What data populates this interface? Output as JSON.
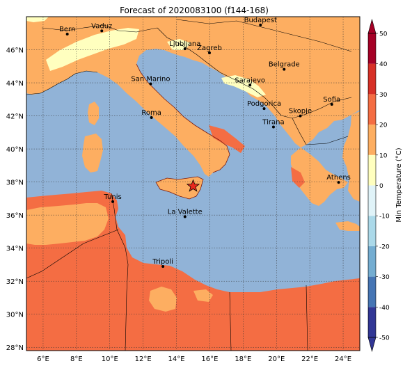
{
  "title": "Forecast of 2020083100 (f144-168)",
  "map": {
    "lon_range": [
      5,
      25
    ],
    "lat_range": [
      27.8,
      48
    ],
    "lon_ticks": [
      "6°E",
      "8°E",
      "10°E",
      "12°E",
      "14°E",
      "16°E",
      "18°E",
      "20°E",
      "22°E",
      "24°E"
    ],
    "lat_ticks": [
      "28°N",
      "30°N",
      "32°N",
      "34°N",
      "36°N",
      "38°N",
      "40°N",
      "42°N",
      "44°N",
      "46°N"
    ],
    "grid": true,
    "marker": {
      "symbol": "star",
      "lon": 15.0,
      "lat": 37.75,
      "color": "#e8291c"
    },
    "cities": [
      {
        "name": "Bern",
        "lon": 7.45,
        "lat": 46.95
      },
      {
        "name": "Vaduz",
        "lon": 9.52,
        "lat": 47.14
      },
      {
        "name": "Budapest",
        "lon": 19.04,
        "lat": 47.5
      },
      {
        "name": "Ljubljana",
        "lon": 14.51,
        "lat": 46.06
      },
      {
        "name": "Zagreb",
        "lon": 15.98,
        "lat": 45.81
      },
      {
        "name": "Belgrade",
        "lon": 20.46,
        "lat": 44.82
      },
      {
        "name": "San Marino",
        "lon": 12.45,
        "lat": 43.94
      },
      {
        "name": "Sarajevo",
        "lon": 18.41,
        "lat": 43.86
      },
      {
        "name": "Sofia",
        "lon": 23.32,
        "lat": 42.7
      },
      {
        "name": "Podgorica",
        "lon": 19.26,
        "lat": 42.44
      },
      {
        "name": "Skopje",
        "lon": 21.43,
        "lat": 42.0
      },
      {
        "name": "Roma",
        "lon": 12.5,
        "lat": 41.9
      },
      {
        "name": "Tirana",
        "lon": 19.82,
        "lat": 41.33
      },
      {
        "name": "Athens",
        "lon": 23.73,
        "lat": 37.98
      },
      {
        "name": "Tunis",
        "lon": 10.18,
        "lat": 36.81
      },
      {
        "name": "La Valette",
        "lon": 14.51,
        "lat": 35.9
      },
      {
        "name": "Tripoli",
        "lon": 13.19,
        "lat": 32.89
      }
    ]
  },
  "colorbar": {
    "label": "Min Temperature (°C)",
    "ticks": [
      "-50",
      "-40",
      "-30",
      "-20",
      "-10",
      "0",
      "10",
      "20",
      "30",
      "40",
      "50"
    ],
    "levels": [
      -50,
      -40,
      -30,
      -20,
      -10,
      0,
      10,
      20,
      30,
      40,
      50
    ],
    "colors": [
      "#313695",
      "#4575b4",
      "#74add1",
      "#abd9e9",
      "#e0f3f8",
      "#ffffbf",
      "#fdae61",
      "#f46d43",
      "#d73027",
      "#a50026"
    ],
    "extend": "both"
  },
  "legend_colors": {
    "sea": "#91b3d7",
    "warm_10_20": "#fdae61",
    "warm_20_30": "#f46d43",
    "cool_0_10": "#ffffbf",
    "marker": "#e8291c"
  }
}
